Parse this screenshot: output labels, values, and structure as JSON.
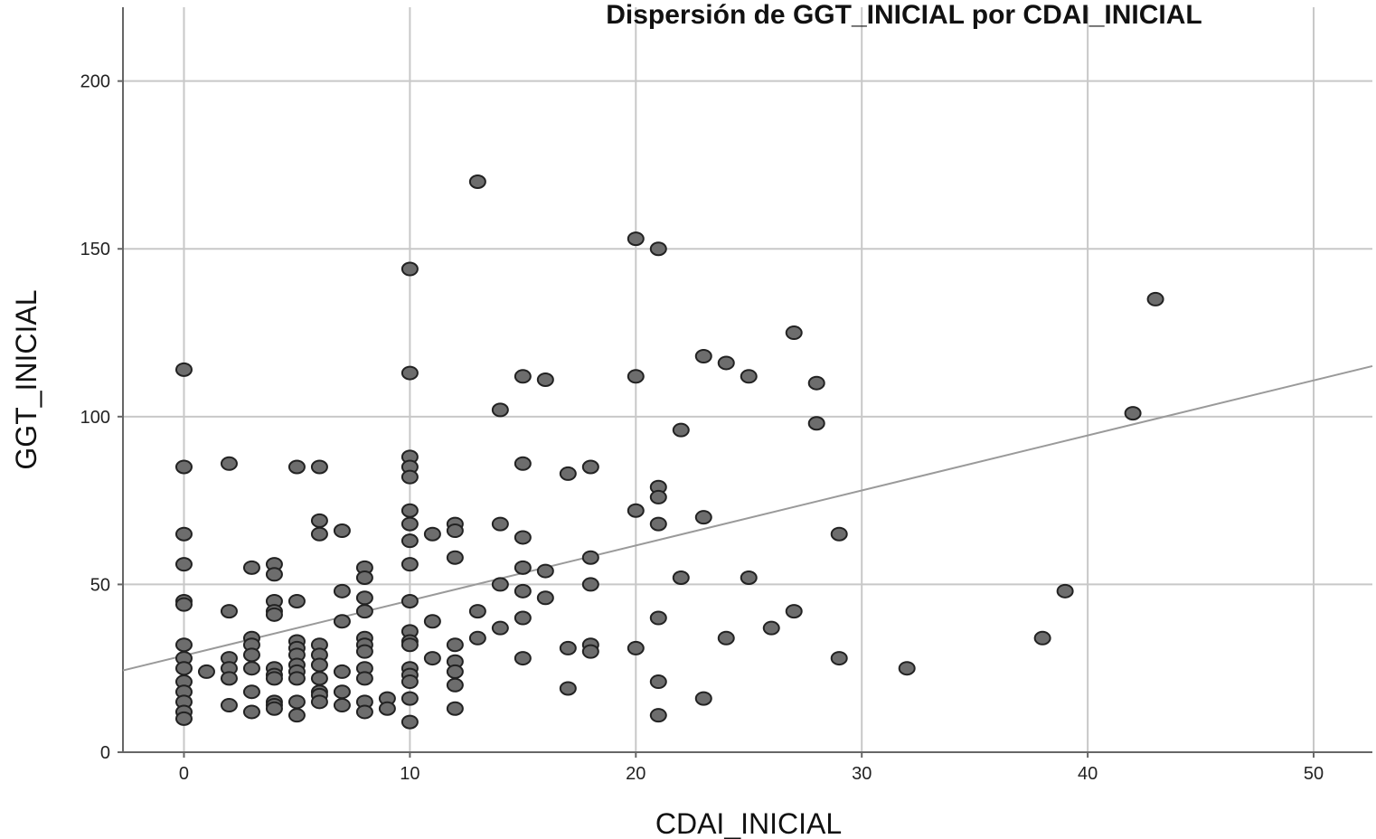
{
  "chart_data": {
    "type": "scatter",
    "title": "Dispersión de GGT_INICIAL por CDAI_INICIAL",
    "xlabel": "CDAI_INICIAL",
    "ylabel": "GGT_INICIAL",
    "xlim": [
      -2.7,
      52.6
    ],
    "ylim": [
      0,
      222
    ],
    "x_ticks": [
      0,
      10,
      20,
      30,
      40,
      50
    ],
    "y_ticks": [
      0,
      50,
      100,
      150,
      200
    ],
    "grid": true,
    "legend": "none",
    "colors": {
      "point_fill": "#6d6d6d",
      "point_stroke": "#222222",
      "fit_line": "#9a9a9a",
      "grid": "#c8c8c8",
      "axis": "#666666"
    },
    "fit_line": {
      "intercept": 28.8,
      "slope": 1.64
    },
    "points": [
      [
        0,
        114
      ],
      [
        0,
        85
      ],
      [
        0,
        65
      ],
      [
        0,
        56
      ],
      [
        0,
        45
      ],
      [
        0,
        44
      ],
      [
        0,
        32
      ],
      [
        0,
        28
      ],
      [
        0,
        25
      ],
      [
        0,
        21
      ],
      [
        0,
        18
      ],
      [
        0,
        15
      ],
      [
        0,
        12
      ],
      [
        0,
        10
      ],
      [
        1,
        24
      ],
      [
        2,
        86
      ],
      [
        2,
        42
      ],
      [
        2,
        28
      ],
      [
        2,
        25
      ],
      [
        2,
        22
      ],
      [
        2,
        14
      ],
      [
        3,
        55
      ],
      [
        3,
        34
      ],
      [
        3,
        32
      ],
      [
        3,
        29
      ],
      [
        3,
        25
      ],
      [
        3,
        18
      ],
      [
        3,
        12
      ],
      [
        4,
        56
      ],
      [
        4,
        53
      ],
      [
        4,
        45
      ],
      [
        4,
        42
      ],
      [
        4,
        41
      ],
      [
        4,
        25
      ],
      [
        4,
        23
      ],
      [
        4,
        22
      ],
      [
        4,
        15
      ],
      [
        4,
        14
      ],
      [
        4,
        13
      ],
      [
        5,
        85
      ],
      [
        5,
        45
      ],
      [
        5,
        33
      ],
      [
        5,
        31
      ],
      [
        5,
        29
      ],
      [
        5,
        26
      ],
      [
        5,
        24
      ],
      [
        5,
        22
      ],
      [
        5,
        15
      ],
      [
        5,
        11
      ],
      [
        6,
        85
      ],
      [
        6,
        69
      ],
      [
        6,
        65
      ],
      [
        6,
        32
      ],
      [
        6,
        29
      ],
      [
        6,
        26
      ],
      [
        6,
        22
      ],
      [
        6,
        18
      ],
      [
        6,
        17
      ],
      [
        6,
        15
      ],
      [
        7,
        66
      ],
      [
        7,
        48
      ],
      [
        7,
        39
      ],
      [
        7,
        24
      ],
      [
        7,
        18
      ],
      [
        7,
        14
      ],
      [
        8,
        55
      ],
      [
        8,
        52
      ],
      [
        8,
        46
      ],
      [
        8,
        42
      ],
      [
        8,
        34
      ],
      [
        8,
        32
      ],
      [
        8,
        30
      ],
      [
        8,
        25
      ],
      [
        8,
        22
      ],
      [
        8,
        15
      ],
      [
        8,
        12
      ],
      [
        9,
        16
      ],
      [
        9,
        13
      ],
      [
        10,
        144
      ],
      [
        10,
        113
      ],
      [
        10,
        88
      ],
      [
        10,
        85
      ],
      [
        10,
        82
      ],
      [
        10,
        72
      ],
      [
        10,
        68
      ],
      [
        10,
        63
      ],
      [
        10,
        56
      ],
      [
        10,
        45
      ],
      [
        10,
        36
      ],
      [
        10,
        33
      ],
      [
        10,
        32
      ],
      [
        10,
        25
      ],
      [
        10,
        23
      ],
      [
        10,
        21
      ],
      [
        10,
        16
      ],
      [
        10,
        9
      ],
      [
        11,
        65
      ],
      [
        11,
        39
      ],
      [
        11,
        28
      ],
      [
        12,
        68
      ],
      [
        12,
        66
      ],
      [
        12,
        58
      ],
      [
        12,
        32
      ],
      [
        12,
        27
      ],
      [
        12,
        24
      ],
      [
        12,
        20
      ],
      [
        12,
        13
      ],
      [
        13,
        170
      ],
      [
        13,
        42
      ],
      [
        13,
        34
      ],
      [
        14,
        102
      ],
      [
        14,
        68
      ],
      [
        14,
        50
      ],
      [
        14,
        37
      ],
      [
        15,
        112
      ],
      [
        15,
        86
      ],
      [
        15,
        64
      ],
      [
        15,
        55
      ],
      [
        15,
        48
      ],
      [
        15,
        40
      ],
      [
        15,
        28
      ],
      [
        16,
        111
      ],
      [
        16,
        54
      ],
      [
        16,
        46
      ],
      [
        17,
        83
      ],
      [
        17,
        31
      ],
      [
        17,
        19
      ],
      [
        18,
        85
      ],
      [
        18,
        58
      ],
      [
        18,
        50
      ],
      [
        18,
        32
      ],
      [
        18,
        30
      ],
      [
        20,
        153
      ],
      [
        20,
        112
      ],
      [
        20,
        72
      ],
      [
        20,
        31
      ],
      [
        21,
        150
      ],
      [
        21,
        79
      ],
      [
        21,
        76
      ],
      [
        21,
        68
      ],
      [
        21,
        40
      ],
      [
        21,
        21
      ],
      [
        21,
        11
      ],
      [
        22,
        96
      ],
      [
        22,
        52
      ],
      [
        23,
        118
      ],
      [
        23,
        70
      ],
      [
        23,
        16
      ],
      [
        24,
        116
      ],
      [
        24,
        34
      ],
      [
        25,
        112
      ],
      [
        25,
        52
      ],
      [
        26,
        37
      ],
      [
        27,
        125
      ],
      [
        27,
        42
      ],
      [
        28,
        110
      ],
      [
        28,
        98
      ],
      [
        29,
        65
      ],
      [
        29,
        28
      ],
      [
        32,
        25
      ],
      [
        38,
        34
      ],
      [
        39,
        48
      ],
      [
        42,
        101
      ],
      [
        43,
        135
      ]
    ]
  }
}
